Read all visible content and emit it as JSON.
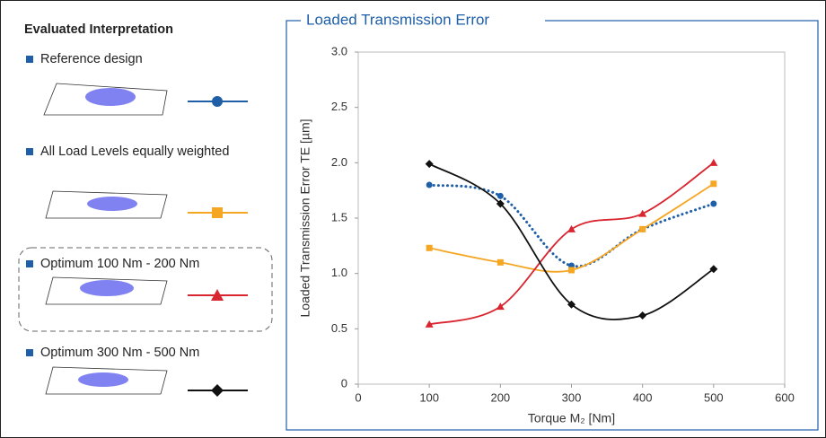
{
  "chart_data": {
    "type": "line",
    "legend_title": "Evaluated Interpretation",
    "title": "Loaded Transmission Error",
    "x_label": "Torque M₂ [Nm]",
    "y_label": "Loaded Transmission Error TE [µm]",
    "x": [
      100,
      200,
      300,
      400,
      500
    ],
    "xlim": [
      0,
      600
    ],
    "xticks": [
      0,
      100,
      200,
      300,
      400,
      500,
      600
    ],
    "ylim": [
      0,
      3
    ],
    "yticks": [
      0,
      0.5,
      {
        "value": 1,
        "label": "1.0"
      },
      1.5,
      {
        "value": 2,
        "label": "2.0"
      },
      2.5,
      {
        "value": 3,
        "label": "3.0"
      }
    ],
    "series": [
      {
        "name": "Reference design",
        "color": "#1f5fa8",
        "marker": "circle",
        "line_style": "dotted",
        "values": [
          1.8,
          1.7,
          1.07,
          1.4,
          1.63
        ]
      },
      {
        "name": "All Load Levels equally weighted",
        "color": "#f5a623",
        "marker": "square",
        "line_style": "solid",
        "values": [
          1.23,
          1.1,
          1.03,
          1.4,
          1.81
        ]
      },
      {
        "name": "Optimum  100 Nm - 200 Nm",
        "color": "#d9252f",
        "marker": "triangle",
        "line_style": "solid",
        "values": [
          0.54,
          0.7,
          1.4,
          1.54,
          2.0
        ]
      },
      {
        "name": "Optimum  300 Nm - 500 Nm",
        "color": "#111111",
        "marker": "diamond",
        "line_style": "solid",
        "values": [
          1.99,
          1.63,
          0.72,
          0.62,
          1.04
        ]
      }
    ]
  }
}
